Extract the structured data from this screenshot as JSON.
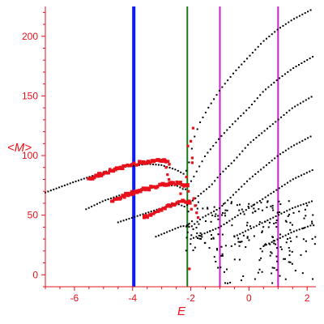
{
  "chart_data": {
    "type": "scatter",
    "title": "",
    "xlabel": "E",
    "ylabel": "<M>",
    "xlim": [
      -7.0,
      2.3
    ],
    "ylim": [
      -10,
      225
    ],
    "x_ticks": [
      -6,
      -4,
      -2,
      0,
      2
    ],
    "y_ticks": [
      0,
      50,
      100,
      150,
      200
    ],
    "x_tick_labels": [
      "-6",
      "-4",
      "-2",
      "0",
      "2"
    ],
    "y_tick_labels": [
      "0",
      "50",
      "100",
      "150",
      "200"
    ],
    "grid": false,
    "legend": "none",
    "colors": {
      "axis": "#e8101a",
      "points_black": "#000000",
      "points_red": "#e8101a",
      "line_blue": "#0a1aff",
      "line_green": "#1a7a1a",
      "line_magenta": "#cc22cc"
    },
    "vertical_lines": [
      {
        "x": -3.96,
        "color": "#0a1aff",
        "style": "thick"
      },
      {
        "x": -2.12,
        "color": "#1a7a1a",
        "style": "normal"
      },
      {
        "x": -1.0,
        "color": "#cc22cc",
        "style": "normal"
      },
      {
        "x": 1.0,
        "color": "#cc22cc",
        "style": "normal"
      }
    ],
    "black_bands": [
      [
        [
          -7.0,
          69
        ],
        [
          -6.0,
          78
        ],
        [
          -5.0,
          86
        ],
        [
          -4.4,
          90
        ],
        [
          -3.5,
          93
        ],
        [
          -3.0,
          92
        ],
        [
          -2.5,
          88
        ],
        [
          -2.2,
          84
        ],
        [
          -2.05,
          95
        ],
        [
          -1.9,
          114
        ],
        [
          -1.7,
          127
        ],
        [
          -1.4,
          140
        ],
        [
          -1.0,
          155
        ],
        [
          -0.5,
          170
        ],
        [
          0.0,
          183
        ],
        [
          0.5,
          196
        ],
        [
          1.0,
          206
        ],
        [
          1.5,
          214
        ],
        [
          2.2,
          223
        ]
      ],
      [
        [
          -5.6,
          55
        ],
        [
          -5.0,
          62
        ],
        [
          -4.4,
          67
        ],
        [
          -3.5,
          72
        ],
        [
          -3.0,
          75
        ],
        [
          -2.5,
          75
        ],
        [
          -2.2,
          71
        ],
        [
          -1.95,
          80
        ],
        [
          -1.5,
          100
        ],
        [
          -1.0,
          115
        ],
        [
          -0.5,
          128
        ],
        [
          0.0,
          140
        ],
        [
          0.5,
          154
        ],
        [
          1.0,
          164
        ],
        [
          1.5,
          173
        ],
        [
          2.2,
          183
        ]
      ],
      [
        [
          -4.5,
          44
        ],
        [
          -4.0,
          48
        ],
        [
          -3.5,
          52
        ],
        [
          -3.0,
          56
        ],
        [
          -2.5,
          60
        ],
        [
          -2.2,
          57
        ],
        [
          -1.8,
          65
        ],
        [
          -1.3,
          75
        ],
        [
          -1.0,
          84
        ],
        [
          -0.5,
          96
        ],
        [
          0.0,
          110
        ],
        [
          0.5,
          120
        ],
        [
          1.0,
          130
        ],
        [
          1.5,
          140
        ],
        [
          2.2,
          150
        ]
      ],
      [
        [
          -3.2,
          32
        ],
        [
          -2.7,
          37
        ],
        [
          -2.3,
          41
        ],
        [
          -2.0,
          40
        ],
        [
          -1.6,
          48
        ],
        [
          -1.0,
          56
        ],
        [
          -0.5,
          68
        ],
        [
          0.0,
          80
        ],
        [
          0.5,
          90
        ],
        [
          1.0,
          100
        ],
        [
          1.5,
          108
        ],
        [
          2.2,
          117
        ]
      ],
      [
        [
          -2.0,
          30
        ],
        [
          -1.5,
          35
        ],
        [
          -1.0,
          40
        ],
        [
          -0.5,
          48
        ],
        [
          0.0,
          56
        ],
        [
          0.5,
          64
        ],
        [
          1.0,
          72
        ],
        [
          1.5,
          80
        ],
        [
          2.2,
          88
        ]
      ],
      [
        [
          -0.5,
          32
        ],
        [
          0.0,
          38
        ],
        [
          0.5,
          44
        ],
        [
          1.0,
          50
        ],
        [
          1.5,
          56
        ],
        [
          2.2,
          62
        ]
      ],
      [
        [
          0.5,
          24
        ],
        [
          1.0,
          30
        ],
        [
          1.5,
          36
        ],
        [
          2.2,
          42
        ]
      ]
    ],
    "red_bands": [
      [
        [
          -5.5,
          80
        ],
        [
          -4.9,
          86
        ],
        [
          -4.4,
          90
        ],
        [
          -3.9,
          93
        ],
        [
          -3.4,
          95
        ],
        [
          -3.0,
          96
        ],
        [
          -2.7,
          93
        ]
      ],
      [
        [
          -4.7,
          62
        ],
        [
          -4.2,
          67
        ],
        [
          -3.7,
          71
        ],
        [
          -3.2,
          74
        ],
        [
          -2.8,
          76
        ],
        [
          -2.4,
          77
        ],
        [
          -2.1,
          74
        ]
      ],
      [
        [
          -3.6,
          48
        ],
        [
          -3.1,
          54
        ],
        [
          -2.6,
          59
        ],
        [
          -2.3,
          62
        ],
        [
          -2.0,
          60
        ]
      ]
    ],
    "red_scatter": [
      [
        -2.85,
        90
      ],
      [
        -2.8,
        84
      ],
      [
        -2.75,
        80
      ],
      [
        -2.5,
        76
      ],
      [
        -2.35,
        68
      ],
      [
        -2.15,
        82
      ],
      [
        -2.1,
        108
      ],
      [
        -2.08,
        70
      ],
      [
        -2.05,
        62
      ],
      [
        -2.0,
        112
      ],
      [
        -1.98,
        55
      ],
      [
        -1.95,
        98
      ],
      [
        -1.92,
        123
      ],
      [
        -1.9,
        64
      ],
      [
        -1.85,
        58
      ],
      [
        -1.8,
        52
      ],
      [
        -1.75,
        48
      ],
      [
        -2.05,
        5
      ],
      [
        -1.95,
        94
      ]
    ],
    "black_scatter_region": {
      "x": [
        -2.2,
        2.3
      ],
      "y": [
        -8,
        62
      ]
    }
  }
}
